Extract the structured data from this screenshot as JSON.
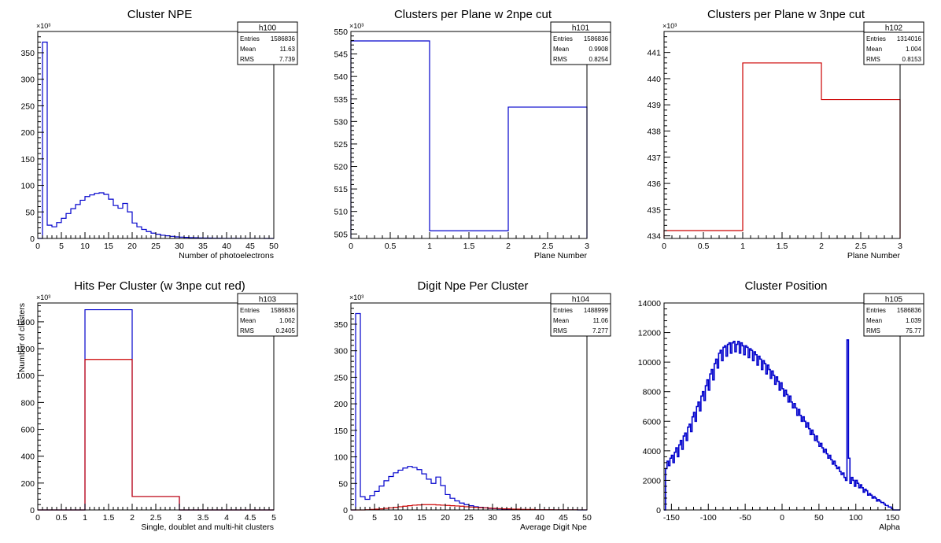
{
  "chart_data": [
    {
      "id": "h100",
      "type": "histogram",
      "title": "Cluster NPE",
      "xlabel": "Number of photoelectrons",
      "ylabel": "",
      "y_multiplier": "×10³",
      "xlim": [
        0,
        50
      ],
      "ylim": [
        0,
        390
      ],
      "x_ticks": [
        0,
        5,
        10,
        15,
        20,
        25,
        30,
        35,
        40,
        45,
        50
      ],
      "y_ticks": [
        0,
        50,
        100,
        150,
        200,
        250,
        300,
        350
      ],
      "bin_width": 1,
      "series": [
        {
          "color": "#0000cc",
          "values": [
            0,
            370,
            25,
            22,
            30,
            38,
            47,
            56,
            64,
            72,
            79,
            82,
            85,
            86,
            83,
            74,
            62,
            57,
            66,
            50,
            29,
            22,
            17,
            13,
            10,
            8,
            6,
            5,
            4,
            3,
            2.5,
            2,
            1.6,
            1.3,
            1,
            0.8,
            0.7,
            0.5,
            0.4,
            0.3,
            0.3,
            0.2,
            0.2,
            0.1,
            0.1,
            0.1,
            0.1,
            0.1,
            0,
            0
          ]
        }
      ],
      "stats": {
        "name": "h100",
        "entries_label": "Entries",
        "entries": "1586836",
        "mean_label": "Mean",
        "mean": "11.63",
        "rms_label": "RMS",
        "rms": "7.739"
      }
    },
    {
      "id": "h101",
      "type": "histogram",
      "title": "Clusters per Plane w 2npe cut",
      "xlabel": "Plane Number",
      "ylabel": "",
      "y_multiplier": "×10³",
      "xlim": [
        0,
        3
      ],
      "ylim": [
        504,
        550
      ],
      "x_ticks": [
        0,
        0.5,
        1,
        1.5,
        2,
        2.5,
        3
      ],
      "y_ticks": [
        505,
        510,
        515,
        520,
        525,
        530,
        535,
        540,
        545,
        550
      ],
      "bin_width": 1,
      "series": [
        {
          "color": "#0000cc",
          "values": [
            547.9,
            505.7,
            533.2
          ]
        }
      ],
      "stats": {
        "name": "h101",
        "entries_label": "Entries",
        "entries": "1586836",
        "mean_label": "Mean",
        "mean": "0.9908",
        "rms_label": "RMS",
        "rms": "0.8254"
      }
    },
    {
      "id": "h102",
      "type": "histogram",
      "title": "Clusters per Plane w 3npe cut",
      "xlabel": "Plane Number",
      "ylabel": "",
      "y_multiplier": "×10³",
      "xlim": [
        0,
        3
      ],
      "ylim": [
        433.9,
        441.8
      ],
      "x_ticks": [
        0,
        0.5,
        1,
        1.5,
        2,
        2.5,
        3
      ],
      "y_ticks": [
        434,
        435,
        436,
        437,
        438,
        439,
        440,
        441
      ],
      "bin_width": 1,
      "series": [
        {
          "color": "#cc0000",
          "values": [
            434.2,
            440.6,
            439.2
          ]
        }
      ],
      "stats": {
        "name": "h102",
        "entries_label": "Entries",
        "entries": "1314016",
        "mean_label": "Mean",
        "mean": "1.004",
        "rms_label": "RMS",
        "rms": "0.8153"
      }
    },
    {
      "id": "h103",
      "type": "histogram",
      "title": "Hits Per Cluster (w 3npe cut red)",
      "xlabel": "Single, doublet and multi-hit clusters",
      "ylabel": "Number of clusters",
      "y_multiplier": "×10³",
      "xlim": [
        0,
        5
      ],
      "ylim": [
        0,
        1540
      ],
      "x_ticks": [
        0,
        0.5,
        1,
        1.5,
        2,
        2.5,
        3,
        3.5,
        4,
        4.5,
        5
      ],
      "y_ticks": [
        0,
        200,
        400,
        600,
        800,
        1000,
        1200,
        1400
      ],
      "bin_width": 1,
      "series": [
        {
          "color": "#0000cc",
          "values": [
            0,
            1490,
            100,
            0,
            0
          ]
        },
        {
          "color": "#cc0000",
          "values": [
            0,
            1120,
            100,
            0,
            0
          ]
        }
      ],
      "stats": {
        "name": "h103",
        "entries_label": "Entries",
        "entries": "1586836",
        "mean_label": "Mean",
        "mean": "1.062",
        "rms_label": "RMS",
        "rms": "0.2405"
      }
    },
    {
      "id": "h104",
      "type": "histogram",
      "title": "Digit Npe Per Cluster",
      "xlabel": "Average Digit Npe",
      "ylabel": "",
      "y_multiplier": "×10³",
      "xlim": [
        0,
        50
      ],
      "ylim": [
        0,
        390
      ],
      "x_ticks": [
        0,
        5,
        10,
        15,
        20,
        25,
        30,
        35,
        40,
        45,
        50
      ],
      "y_ticks": [
        0,
        50,
        100,
        150,
        200,
        250,
        300,
        350
      ],
      "bin_width": 1,
      "series": [
        {
          "color": "#0000cc",
          "values": [
            0,
            370,
            25,
            20,
            27,
            35,
            45,
            55,
            63,
            70,
            75,
            79,
            82,
            80,
            76,
            68,
            58,
            50,
            62,
            46,
            29,
            22,
            17,
            13,
            10,
            8,
            6,
            5,
            4,
            3,
            2.5,
            2,
            1.6,
            1.3,
            1,
            0.8,
            0.7,
            0.5,
            0.4,
            0.3,
            0.3,
            0.2,
            0.2,
            0.1,
            0.1,
            0.1,
            0.1,
            0.1,
            0,
            0
          ]
        },
        {
          "color": "#cc0000",
          "values": [
            0,
            0,
            0,
            0.5,
            1,
            1.5,
            2,
            3,
            4,
            5,
            6,
            7,
            8,
            9,
            9.5,
            10,
            10,
            10,
            9.5,
            9,
            8.5,
            8,
            7.5,
            7,
            6,
            5.5,
            5,
            4.5,
            4,
            3.5,
            3,
            2.5,
            2,
            2,
            1.5,
            1.5,
            1,
            1,
            1,
            0.5,
            0.5,
            0.5,
            0.5,
            0.3,
            0.3,
            0.2,
            0.2,
            0.2,
            0.1,
            0.1
          ]
        }
      ],
      "stats": {
        "name": "h104",
        "entries_label": "Entries",
        "entries": "1488999",
        "mean_label": "Mean",
        "mean": "11.06",
        "rms_label": "RMS",
        "rms": "7.277"
      }
    },
    {
      "id": "h105",
      "type": "histogram",
      "title": "Cluster Position",
      "xlabel": "Alpha",
      "ylabel": "",
      "y_multiplier": "",
      "xlim": [
        -160,
        160
      ],
      "ylim": [
        0,
        14000
      ],
      "x_ticks": [
        -150,
        -100,
        -50,
        0,
        50,
        100,
        150
      ],
      "y_ticks": [
        0,
        2000,
        4000,
        6000,
        8000,
        10000,
        12000,
        14000
      ],
      "bin_width": 2,
      "series": [
        {
          "color": "#0000cc",
          "values": [
            0,
            2800,
            3300,
            3000,
            3500,
            3700,
            3200,
            3900,
            4200,
            3600,
            4400,
            4700,
            4100,
            5000,
            5200,
            4700,
            5600,
            5800,
            5300,
            6300,
            6600,
            6000,
            7000,
            7300,
            6700,
            7700,
            8000,
            7400,
            8400,
            8800,
            8100,
            9200,
            9500,
            8800,
            9900,
            10200,
            9600,
            10600,
            10800,
            10100,
            11000,
            11100,
            10400,
            11200,
            11300,
            10600,
            11300,
            11400,
            10700,
            11200,
            11400,
            10600,
            11300,
            11100,
            10500,
            11100,
            11000,
            10300,
            10900,
            10800,
            10100,
            10700,
            10500,
            9800,
            10400,
            10200,
            9500,
            10100,
            9900,
            9200,
            9800,
            9500,
            8900,
            9400,
            9100,
            8500,
            9000,
            8700,
            8100,
            8600,
            8200,
            7700,
            8100,
            7800,
            7300,
            7700,
            7300,
            6900,
            7200,
            6900,
            6400,
            6800,
            6400,
            6000,
            6300,
            6000,
            5600,
            5900,
            5500,
            5100,
            5400,
            5100,
            4700,
            5000,
            4600,
            4300,
            4500,
            4200,
            3900,
            4100,
            3800,
            3500,
            3700,
            3400,
            3100,
            3300,
            3000,
            2800,
            2900,
            2600,
            2400,
            2500,
            2200,
            2000,
            11500,
            3500,
            1800,
            2200,
            2000,
            1600,
            2000,
            1800,
            1500,
            1700,
            1500,
            1200,
            1400,
            1300,
            1000,
            1100,
            1000,
            800,
            900,
            800,
            600,
            700,
            600,
            500,
            500,
            400,
            300,
            300,
            200,
            200,
            100,
            0
          ]
        }
      ],
      "stats": {
        "name": "h105",
        "entries_label": "Entries",
        "entries": "1586836",
        "mean_label": "Mean",
        "mean": "1.039",
        "rms_label": "RMS",
        "rms": "75.77"
      }
    }
  ]
}
